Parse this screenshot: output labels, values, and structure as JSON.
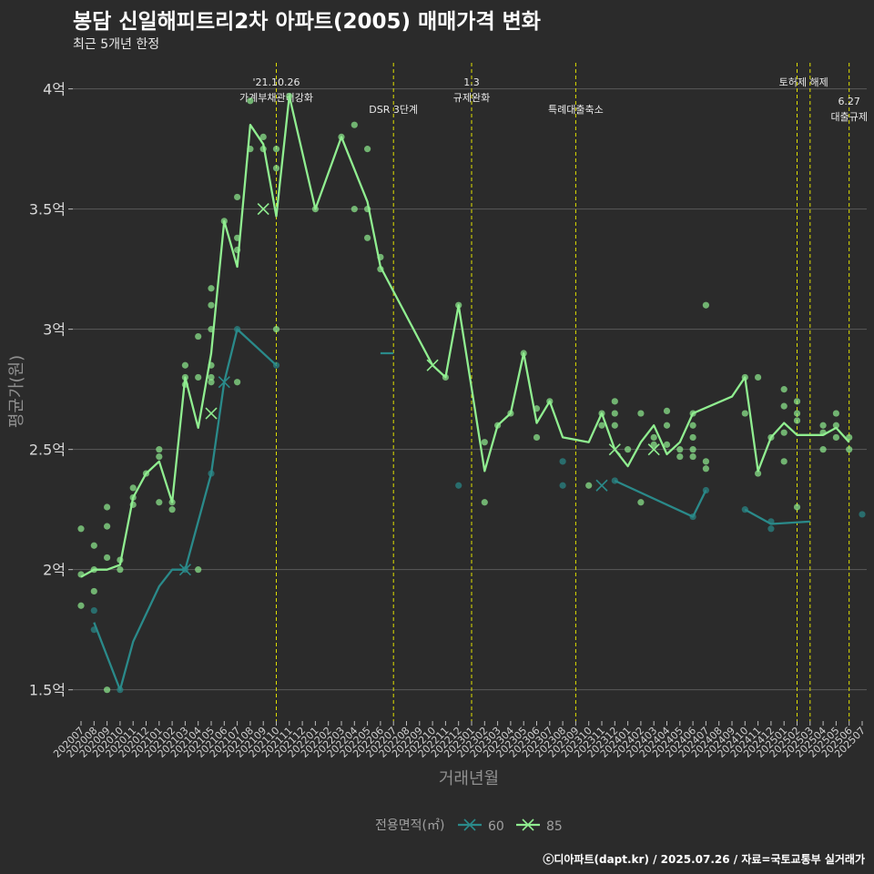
{
  "header": {
    "title": "봉담 신일해피트리2차 아파트(2005) 매매가격 변화",
    "subtitle": "최근 5개년 한정"
  },
  "caption": "ⓒ디아파트(dapt.kr) / 2025.07.26 / 자료=국토교통부 실거래가",
  "colors": {
    "background": "#2b2b2b",
    "grid": "#5a5a5a",
    "series_60": "#2a8a8a",
    "series_85": "#90ee90",
    "event_line": "#e0e000"
  },
  "chart_data": {
    "type": "line",
    "xlabel": "거래년월",
    "ylabel": "평균가(원)",
    "ylim": [
      1.37,
      4.15
    ],
    "y_ticks": [
      1.5,
      2,
      2.5,
      3,
      3.5,
      4
    ],
    "y_tick_labels": [
      "1.5억",
      "2억",
      "2.5억",
      "3억",
      "3.5억",
      "4억"
    ],
    "x": [
      "202007",
      "202008",
      "202009",
      "202010",
      "202011",
      "202012",
      "202101",
      "202102",
      "202103",
      "202104",
      "202105",
      "202106",
      "202107",
      "202108",
      "202109",
      "202110",
      "202111",
      "202112",
      "202201",
      "202202",
      "202203",
      "202204",
      "202205",
      "202206",
      "202207",
      "202208",
      "202209",
      "202210",
      "202211",
      "202212",
      "202301",
      "202302",
      "202303",
      "202304",
      "202305",
      "202306",
      "202307",
      "202308",
      "202309",
      "202310",
      "202311",
      "202312",
      "202401",
      "202402",
      "202403",
      "202404",
      "202405",
      "202406",
      "202407",
      "202408",
      "202409",
      "202410",
      "202411",
      "202412",
      "202501",
      "202502",
      "202503",
      "202504",
      "202505",
      "202506",
      "202507"
    ],
    "legend": {
      "title": "전용면적(㎡)",
      "position": "bottom",
      "entries": [
        "60",
        "85"
      ]
    },
    "events": [
      {
        "x": "202110",
        "label1": "'21.10.26",
        "label2": "가계부채관리강화",
        "tier": 1
      },
      {
        "x": "202207",
        "label1": "DSR 3단계",
        "tier": 2
      },
      {
        "x": "202301",
        "label1": "1.3",
        "label2": "규제완화",
        "tier": 1
      },
      {
        "x": "202309",
        "label1": "특례대출축소",
        "tier": 2
      },
      {
        "x": "202502",
        "label1": "토허제 해제",
        "tier": 1,
        "x_offset": 0.5
      },
      {
        "x": "202503",
        "tier": 1
      },
      {
        "x": "202506",
        "label1": "6.27",
        "label2": "대출규제",
        "tier": 3
      }
    ],
    "series": [
      {
        "name": "60",
        "line": [
          [
            "202008",
            1.78
          ],
          [
            "202010",
            1.5
          ],
          [
            "202011",
            1.7
          ],
          [
            "202101",
            1.93
          ],
          [
            "202102",
            2.0
          ],
          [
            "202103",
            2.0
          ],
          [
            "202105",
            2.4
          ],
          [
            "202106",
            2.78
          ],
          [
            "202107",
            3.0
          ],
          [
            "202110",
            2.85
          ],
          null,
          [
            "202206",
            2.9
          ],
          [
            "202207",
            2.9
          ],
          null,
          [
            "202210",
            2.85
          ],
          null,
          [
            "202311",
            2.35
          ],
          null,
          [
            "202312",
            2.37
          ],
          [
            "202406",
            2.22
          ],
          [
            "202407",
            2.33
          ],
          null,
          [
            "202410",
            2.25
          ],
          [
            "202412",
            2.19
          ],
          [
            "202503",
            2.2
          ]
        ],
        "points": [
          [
            "202008",
            1.83
          ],
          [
            "202008",
            1.75
          ],
          [
            "202010",
            1.5
          ],
          [
            "202103",
            2.0
          ],
          [
            "202105",
            2.4
          ],
          [
            "202107",
            3.0
          ],
          [
            "202110",
            2.85
          ],
          [
            "202212",
            2.35
          ],
          [
            "202308",
            2.45
          ],
          [
            "202308",
            2.35
          ],
          [
            "202312",
            2.37
          ],
          [
            "202406",
            2.22
          ],
          [
            "202407",
            2.33
          ],
          [
            "202410",
            2.25
          ],
          [
            "202412",
            2.2
          ],
          [
            "202412",
            2.17
          ],
          [
            "202507",
            2.23
          ]
        ],
        "crosses": [
          [
            "202103",
            2.0
          ],
          [
            "202106",
            2.78
          ],
          [
            "202311",
            2.35
          ]
        ]
      },
      {
        "name": "85",
        "line": [
          [
            "202007",
            1.97
          ],
          [
            "202008",
            2.0
          ],
          [
            "202009",
            2.0
          ],
          [
            "202010",
            2.02
          ],
          [
            "202011",
            2.3
          ],
          [
            "202012",
            2.4
          ],
          [
            "202101",
            2.45
          ],
          [
            "202102",
            2.28
          ],
          [
            "202103",
            2.8
          ],
          [
            "202104",
            2.59
          ],
          [
            "202105",
            2.9
          ],
          [
            "202106",
            3.45
          ],
          [
            "202107",
            3.26
          ],
          [
            "202108",
            3.85
          ],
          [
            "202109",
            3.77
          ],
          [
            "202110",
            3.47
          ],
          [
            "202111",
            3.97
          ],
          [
            "202201",
            3.5
          ],
          [
            "202203",
            3.8
          ],
          [
            "202205",
            3.53
          ],
          [
            "202206",
            3.26
          ],
          [
            "202210",
            2.85
          ],
          [
            "202211",
            2.8
          ],
          [
            "202212",
            3.1
          ],
          [
            "202302",
            2.41
          ],
          [
            "202303",
            2.6
          ],
          [
            "202304",
            2.65
          ],
          [
            "202305",
            2.9
          ],
          [
            "202306",
            2.61
          ],
          [
            "202307",
            2.7
          ],
          [
            "202308",
            2.55
          ],
          [
            "202310",
            2.53
          ],
          [
            "202311",
            2.65
          ],
          [
            "202312",
            2.5
          ],
          [
            "202401",
            2.43
          ],
          [
            "202402",
            2.53
          ],
          [
            "202403",
            2.6
          ],
          [
            "202404",
            2.48
          ],
          [
            "202405",
            2.53
          ],
          [
            "202406",
            2.65
          ],
          [
            "202409",
            2.72
          ],
          [
            "202410",
            2.8
          ],
          [
            "202411",
            2.41
          ],
          [
            "202412",
            2.55
          ],
          [
            "202501",
            2.61
          ],
          [
            "202502",
            2.56
          ],
          [
            "202504",
            2.56
          ],
          [
            "202505",
            2.59
          ],
          [
            "202506",
            2.53
          ]
        ],
        "points": [
          [
            "202007",
            2.17
          ],
          [
            "202007",
            1.98
          ],
          [
            "202007",
            1.85
          ],
          [
            "202008",
            2.1
          ],
          [
            "202008",
            2.0
          ],
          [
            "202008",
            1.91
          ],
          [
            "202009",
            2.26
          ],
          [
            "202009",
            2.18
          ],
          [
            "202009",
            2.05
          ],
          [
            "202009",
            1.5
          ],
          [
            "202010",
            2.04
          ],
          [
            "202010",
            2.0
          ],
          [
            "202011",
            2.34
          ],
          [
            "202011",
            2.3
          ],
          [
            "202011",
            2.27
          ],
          [
            "202012",
            2.4
          ],
          [
            "202101",
            2.5
          ],
          [
            "202101",
            2.47
          ],
          [
            "202101",
            2.28
          ],
          [
            "202102",
            2.28
          ],
          [
            "202102",
            2.25
          ],
          [
            "202103",
            2.85
          ],
          [
            "202103",
            2.8
          ],
          [
            "202103",
            2.77
          ],
          [
            "202104",
            2.97
          ],
          [
            "202104",
            2.8
          ],
          [
            "202104",
            2.0
          ],
          [
            "202105",
            3.17
          ],
          [
            "202105",
            3.1
          ],
          [
            "202105",
            3.0
          ],
          [
            "202105",
            2.85
          ],
          [
            "202105",
            2.8
          ],
          [
            "202105",
            2.78
          ],
          [
            "202106",
            3.45
          ],
          [
            "202107",
            3.55
          ],
          [
            "202107",
            3.38
          ],
          [
            "202107",
            3.33
          ],
          [
            "202107",
            2.78
          ],
          [
            "202108",
            3.95
          ],
          [
            "202108",
            3.75
          ],
          [
            "202109",
            3.8
          ],
          [
            "202109",
            3.75
          ],
          [
            "202110",
            3.75
          ],
          [
            "202110",
            3.67
          ],
          [
            "202110",
            3.0
          ],
          [
            "202111",
            3.97
          ],
          [
            "202201",
            3.5
          ],
          [
            "202203",
            3.8
          ],
          [
            "202204",
            3.85
          ],
          [
            "202204",
            3.5
          ],
          [
            "202205",
            3.75
          ],
          [
            "202205",
            3.5
          ],
          [
            "202205",
            3.38
          ],
          [
            "202206",
            3.3
          ],
          [
            "202206",
            3.25
          ],
          [
            "202211",
            2.8
          ],
          [
            "202212",
            3.1
          ],
          [
            "202302",
            2.53
          ],
          [
            "202302",
            2.28
          ],
          [
            "202303",
            2.6
          ],
          [
            "202304",
            2.65
          ],
          [
            "202305",
            2.9
          ],
          [
            "202306",
            2.67
          ],
          [
            "202306",
            2.55
          ],
          [
            "202307",
            2.7
          ],
          [
            "202310",
            2.35
          ],
          [
            "202311",
            2.65
          ],
          [
            "202311",
            2.6
          ],
          [
            "202312",
            2.7
          ],
          [
            "202312",
            2.65
          ],
          [
            "202312",
            2.6
          ],
          [
            "202401",
            2.5
          ],
          [
            "202402",
            2.65
          ],
          [
            "202402",
            2.28
          ],
          [
            "202403",
            2.55
          ],
          [
            "202403",
            2.52
          ],
          [
            "202404",
            2.66
          ],
          [
            "202404",
            2.6
          ],
          [
            "202404",
            2.52
          ],
          [
            "202405",
            2.5
          ],
          [
            "202405",
            2.47
          ],
          [
            "202406",
            2.65
          ],
          [
            "202406",
            2.6
          ],
          [
            "202406",
            2.55
          ],
          [
            "202406",
            2.5
          ],
          [
            "202406",
            2.47
          ],
          [
            "202407",
            3.1
          ],
          [
            "202407",
            2.45
          ],
          [
            "202407",
            2.42
          ],
          [
            "202410",
            2.8
          ],
          [
            "202410",
            2.65
          ],
          [
            "202411",
            2.8
          ],
          [
            "202411",
            2.4
          ],
          [
            "202412",
            2.55
          ],
          [
            "202501",
            2.75
          ],
          [
            "202501",
            2.68
          ],
          [
            "202501",
            2.57
          ],
          [
            "202501",
            2.45
          ],
          [
            "202502",
            2.7
          ],
          [
            "202502",
            2.65
          ],
          [
            "202502",
            2.62
          ],
          [
            "202502",
            2.26
          ],
          [
            "202504",
            2.57
          ],
          [
            "202504",
            2.6
          ],
          [
            "202504",
            2.5
          ],
          [
            "202505",
            2.65
          ],
          [
            "202505",
            2.6
          ],
          [
            "202505",
            2.55
          ],
          [
            "202506",
            2.55
          ],
          [
            "202506",
            2.5
          ]
        ],
        "crosses": [
          [
            "202109",
            3.5
          ],
          [
            "202105",
            2.65
          ],
          [
            "202210",
            2.85
          ],
          [
            "202312",
            2.5
          ],
          [
            "202403",
            2.5
          ]
        ]
      }
    ]
  }
}
